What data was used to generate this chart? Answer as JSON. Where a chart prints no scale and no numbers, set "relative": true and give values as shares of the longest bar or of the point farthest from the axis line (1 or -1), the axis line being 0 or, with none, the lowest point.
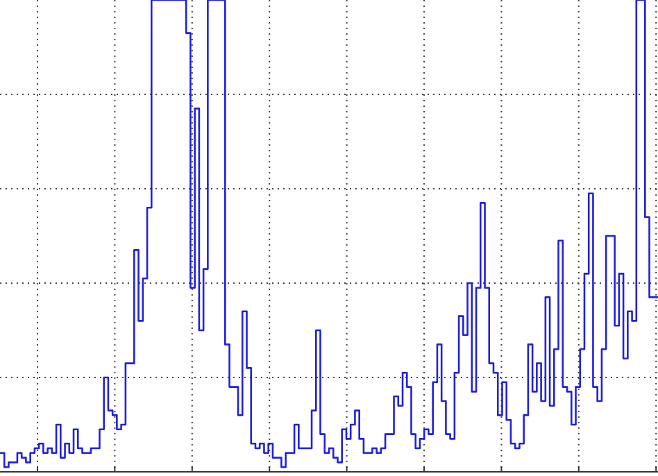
{
  "chart_data": {
    "type": "step",
    "relative": true,
    "grid": true,
    "line_style": "solid",
    "categories": [
      null,
      null,
      null,
      null,
      null,
      null,
      null,
      null,
      null,
      null,
      null,
      null,
      null,
      null,
      null,
      null,
      null,
      null,
      null,
      null,
      null,
      null,
      null,
      null,
      null,
      null,
      null,
      null,
      null,
      null,
      null,
      null,
      null,
      null,
      null,
      null,
      null,
      null,
      null,
      null,
      null,
      null,
      null,
      null,
      null,
      null,
      null,
      null,
      null,
      null,
      null,
      null,
      null,
      null,
      null,
      null,
      null,
      null,
      null,
      null,
      null,
      null,
      null,
      null,
      null,
      null,
      null,
      null,
      null,
      null,
      null,
      null,
      null,
      null,
      null,
      null,
      null,
      null,
      null,
      null,
      null,
      null,
      null,
      null,
      null,
      null,
      null,
      null,
      null,
      null,
      null,
      null,
      null,
      null,
      null,
      null,
      null,
      null,
      null,
      null,
      null,
      null,
      null,
      null,
      null,
      null,
      null,
      null,
      null,
      null,
      null,
      null,
      null,
      null,
      null,
      null,
      null,
      null,
      null,
      null,
      null,
      null,
      null,
      null,
      null,
      null,
      null,
      null,
      null,
      null,
      null,
      null,
      null,
      null,
      null,
      null,
      null,
      null,
      null,
      null,
      null,
      null,
      null,
      null,
      null,
      null,
      null,
      null,
      null,
      null,
      null,
      null
    ],
    "series": [
      {
        "color": "#2020e0",
        "values": [
          0.04,
          0.01,
          0.02,
          0.02,
          0.04,
          0.03,
          0.02,
          0.04,
          0.05,
          0.06,
          0.04,
          0.05,
          0.04,
          0.1,
          0.03,
          0.06,
          0.04,
          0.09,
          0.05,
          0.04,
          0.04,
          0.05,
          0.05,
          0.09,
          0.2,
          0.13,
          0.12,
          0.09,
          0.1,
          0.23,
          0.23,
          0.47,
          0.32,
          0.41,
          0.56,
          1,
          1,
          1,
          1,
          1,
          1,
          1,
          1,
          0.93,
          0.39,
          0.77,
          0.3,
          0.43,
          1,
          1,
          1,
          1,
          0.27,
          0.18,
          0.18,
          0.12,
          0.34,
          0.22,
          0.06,
          0.05,
          0.06,
          0.04,
          0.06,
          0.03,
          0.03,
          0.01,
          0.04,
          0.04,
          0.1,
          0.05,
          0.05,
          0.05,
          0.13,
          0.3,
          0.08,
          0.04,
          0.05,
          0.03,
          0.02,
          0.09,
          0.07,
          0.1,
          0.13,
          0.07,
          0.04,
          0.04,
          0.05,
          0.04,
          0.05,
          0.08,
          0.08,
          0.16,
          0.14,
          0.21,
          0.18,
          0.08,
          0.05,
          0.07,
          0.09,
          0.08,
          0.19,
          0.27,
          0.15,
          0.08,
          0.07,
          0.21,
          0.33,
          0.29,
          0.4,
          0.17,
          0.39,
          0.57,
          0.39,
          0.23,
          0.21,
          0.12,
          0.19,
          0.11,
          0.06,
          0.05,
          0.06,
          0.12,
          0.27,
          0.17,
          0.23,
          0.15,
          0.37,
          0.14,
          0.26,
          0.49,
          0.18,
          0.17,
          0.1,
          0.18,
          0.26,
          0.42,
          0.59,
          0.18,
          0.15,
          0.26,
          0.5,
          0.5,
          0.31,
          0.42,
          0.24,
          0.34,
          0.32,
          1,
          1,
          0.54,
          0.37,
          0.37
        ]
      }
    ]
  }
}
